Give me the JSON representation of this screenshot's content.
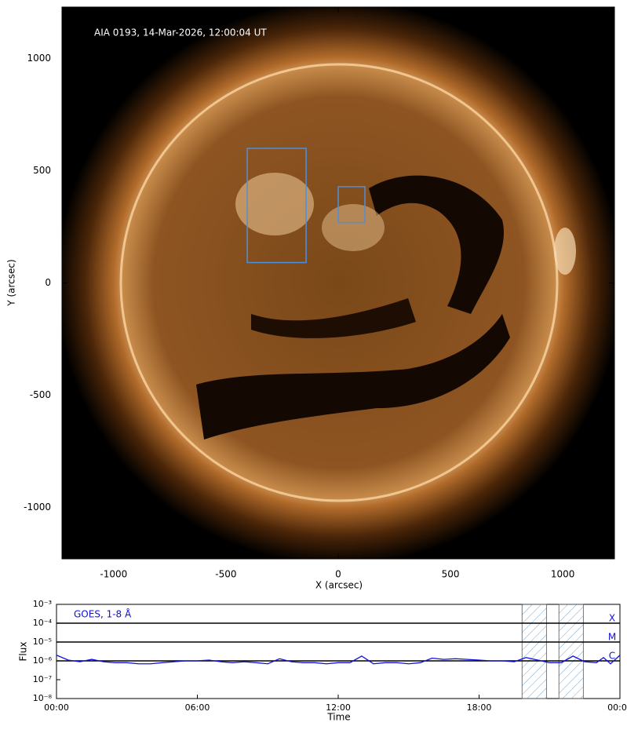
{
  "chart_data": [
    {
      "type": "image",
      "annotation": "AIA 0193, 14-Mar-2026, 12:00:04 UT",
      "xlabel": "X (arcsec)",
      "ylabel": "Y (arcsec)",
      "xlim": [
        -1230,
        1230
      ],
      "ylim": [
        -1230,
        1230
      ],
      "xticks": [
        -1000,
        -500,
        0,
        500,
        1000
      ],
      "yticks": [
        -1000,
        -500,
        0,
        500,
        1000
      ],
      "boxes": [
        {
          "x": [
            -405,
            -143
          ],
          "y": [
            91,
            600
          ],
          "color": "#4a90e2"
        },
        {
          "x": [
            0,
            119
          ],
          "y": [
            269,
            429
          ],
          "color": "#4a90e2"
        }
      ]
    },
    {
      "type": "line",
      "xlabel": "Time",
      "ylabel": "Flux",
      "xlim": [
        0,
        24
      ],
      "ylim": [
        1e-08,
        0.001
      ],
      "yscale": "log",
      "xticks": [
        {
          "value": 0,
          "label": "00:00"
        },
        {
          "value": 6,
          "label": "06:00"
        },
        {
          "value": 12,
          "label": "12:00"
        },
        {
          "value": 18,
          "label": "18:00"
        },
        {
          "value": 24,
          "label": "00:00"
        }
      ],
      "yticks": [
        {
          "value": 1e-08,
          "label": "10⁻⁸"
        },
        {
          "value": 1e-07,
          "label": "10⁻⁷"
        },
        {
          "value": 1e-06,
          "label": "10⁻⁶"
        },
        {
          "value": 1e-05,
          "label": "10⁻⁵"
        },
        {
          "value": 0.0001,
          "label": "10⁻⁴"
        },
        {
          "value": 0.001,
          "label": "10⁻³"
        }
      ],
      "levels": [
        {
          "value": 0.0001,
          "label": "X"
        },
        {
          "value": 1e-05,
          "label": "M"
        },
        {
          "value": 1e-06,
          "label": "C"
        }
      ],
      "spans": [
        [
          19.83,
          20.87
        ],
        [
          21.4,
          22.44
        ]
      ],
      "x": [
        0,
        0.5,
        1,
        1.5,
        2,
        2.5,
        3,
        3.5,
        4,
        4.5,
        5,
        5.5,
        6,
        6.5,
        7,
        7.5,
        8,
        8.5,
        9,
        9.5,
        10,
        10.5,
        11,
        11.5,
        12,
        12.5,
        13,
        13.5,
        14,
        14.5,
        15,
        15.5,
        16,
        16.5,
        17,
        17.5,
        18,
        18.5,
        19,
        19.5,
        20,
        20.5,
        21,
        21.5,
        22,
        22.5,
        23,
        23.3,
        23.6,
        24
      ],
      "series": [
        {
          "name": "GOES, 1-8 Å",
          "color": "#1010e0",
          "values": [
            2e-06,
            1.1e-06,
            9e-07,
            1.2e-06,
            9e-07,
            8e-07,
            8e-07,
            7e-07,
            7e-07,
            8e-07,
            9e-07,
            1e-06,
            1e-06,
            1.1e-06,
            9e-07,
            8e-07,
            9e-07,
            8e-07,
            7e-07,
            1.3e-06,
            9e-07,
            8e-07,
            8e-07,
            7e-07,
            8e-07,
            8e-07,
            1.8e-06,
            7e-07,
            8e-07,
            8e-07,
            7e-07,
            8e-07,
            1.4e-06,
            1.2e-06,
            1.3e-06,
            1.2e-06,
            1.1e-06,
            1e-06,
            1e-06,
            9e-07,
            1.5e-06,
            1.1e-06,
            8e-07,
            8e-07,
            1.8e-06,
            9e-07,
            8e-07,
            1.5e-06,
            7e-07,
            2e-06
          ]
        }
      ]
    }
  ]
}
